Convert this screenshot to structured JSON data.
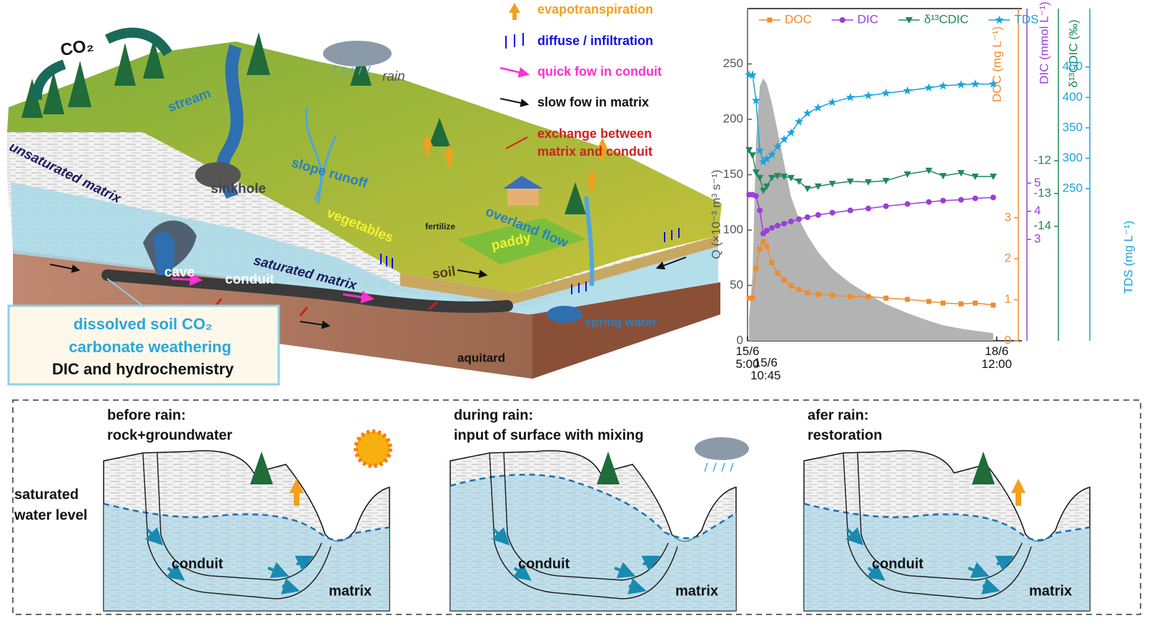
{
  "diagram": {
    "labels": [
      "CO₂",
      "rain",
      "stream",
      "unsaturated matrix",
      "sinkhole",
      "slope runoff",
      "vegetables",
      "fertilize",
      "overland flow",
      "saturated matrix",
      "cave",
      "soil",
      "paddy",
      "conduit",
      "spring water",
      "aquitard"
    ],
    "box": [
      "dissolved soil CO₂",
      "carbonate weathering",
      "DIC and hydrochemistry"
    ]
  },
  "legend": [
    {
      "label": [
        "evapotranspiration"
      ]
    },
    {
      "label": [
        "diffuse / infiltration"
      ]
    },
    {
      "label": [
        "quick fow in conduit"
      ]
    },
    {
      "label": [
        "slow fow in matrix"
      ]
    },
    {
      "label": [
        "exchange between",
        "matrix and conduit"
      ]
    }
  ],
  "chart_data": {
    "type": "line",
    "x": [
      5.5,
      6.6,
      7.7,
      8.9,
      10.0,
      11.1,
      12.7,
      14.5,
      16.6,
      18.8,
      21.3,
      24.0,
      27.4,
      31.9,
      37.6,
      43.3,
      48.9,
      55.7,
      62.5,
      67.0,
      72.7,
      77.2,
      82.9
    ],
    "xlim": [
      5,
      92
    ],
    "xticks": [
      {
        "value": 5,
        "label": "15/6 5:00"
      },
      {
        "value": 10.75,
        "label": "15/6 10:45"
      },
      {
        "value": 84,
        "label": "18/6 12:00"
      }
    ],
    "ylabel": "Q (×10⁻³ m³ s⁻¹)",
    "ylim": [
      0,
      300
    ],
    "yticks": [
      0,
      50,
      100,
      150,
      200,
      250
    ],
    "ycolor": "#555555",
    "y2label": "DOC (mg L⁻¹)",
    "y2lim": [
      0,
      8.1
    ],
    "y2ticks": [
      0,
      1,
      2,
      3
    ],
    "y2color": "#f08c2e",
    "y3label": "DIC (mmol L⁻¹)",
    "y3lim": [
      -0.6,
      11.2
    ],
    "y3ticks": [
      3,
      4,
      5
    ],
    "y3color": "#9b3fd9",
    "y4label": "δ¹³CDIC (‰)",
    "y4lim": [
      -17.5,
      -7.35
    ],
    "y4ticks": [
      -14,
      -13,
      -12
    ],
    "y4color": "#1e8a5a",
    "y5label": "TDS (mg L⁻¹)",
    "y5lim": [
      0,
      546
    ],
    "y5ticks": [
      250,
      300,
      350,
      400,
      450
    ],
    "y5color": "#1aa3dd",
    "series": [
      {
        "name": "Q",
        "kind": "area",
        "axis": "y",
        "color": "#b3b3b3",
        "values": [
          20,
          60,
          180,
          230,
          237,
          232,
          215,
          190,
          160,
          130,
          110,
          95,
          80,
          65,
          52,
          42,
          33,
          25,
          18,
          14,
          11,
          9,
          7
        ]
      },
      {
        "name": "DOC",
        "axis": "y2",
        "color": "#f08c2e",
        "marker": "square",
        "values": [
          1.04,
          1.04,
          1.77,
          2.24,
          2.42,
          2.3,
          1.9,
          1.65,
          1.48,
          1.34,
          1.25,
          1.17,
          1.13,
          1.11,
          1.08,
          1.08,
          1.04,
          1.01,
          0.96,
          0.92,
          0.9,
          0.92,
          0.87
        ]
      },
      {
        "name": "DIC",
        "axis": "y3",
        "color": "#9b3fd9",
        "marker": "circle",
        "values": [
          4.59,
          4.59,
          4.54,
          4.03,
          3.21,
          3.31,
          3.41,
          3.49,
          3.56,
          3.64,
          3.72,
          3.79,
          3.87,
          3.95,
          4.03,
          4.1,
          4.18,
          4.26,
          4.33,
          4.38,
          4.41,
          4.46,
          4.49
        ]
      },
      {
        "name": "δ¹³CDIC",
        "axis": "y4",
        "color": "#1e8a5a",
        "marker": "triangle",
        "values": [
          -11.67,
          -11.83,
          -12.35,
          -12.52,
          -12.91,
          -12.78,
          -12.52,
          -12.46,
          -12.48,
          -12.52,
          -12.63,
          -12.85,
          -12.78,
          -12.7,
          -12.63,
          -12.65,
          -12.61,
          -12.41,
          -12.3,
          -12.46,
          -12.37,
          -12.48,
          -12.48
        ]
      },
      {
        "name": "TDS",
        "axis": "y5",
        "color": "#1aa3dd",
        "marker": "star",
        "values": [
          437,
          437,
          395,
          313,
          294,
          299,
          306,
          319,
          331,
          342,
          360,
          374,
          383,
          392,
          400,
          403,
          407,
          411,
          416,
          419,
          421,
          422,
          422
        ]
      }
    ]
  },
  "panels": [
    {
      "title": "before rain:",
      "subtitle": "rock+groundwater",
      "conduit": "conduit",
      "matrix": "matrix"
    },
    {
      "title": "during rain:",
      "subtitle": "input of surface with mixing",
      "conduit": "conduit",
      "matrix": "matrix"
    },
    {
      "title": "afer rain:",
      "subtitle": "restoration",
      "conduit": "conduit",
      "matrix": "matrix"
    }
  ],
  "water_level": [
    "saturated",
    "water level"
  ]
}
